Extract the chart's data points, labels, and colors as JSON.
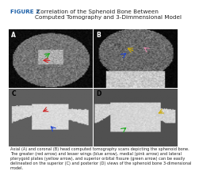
{
  "title_bold": "FIGURE 2",
  "title_normal": " Correlation of the Sphenoid Bone Between\nComputed Tomography and 3-Dimmensional Model",
  "caption": "Axial (A) and coronal (B) head computed tomography scans depicting the sphenoid bone.\nThe greater (red arrow) and lesser wings (blue arrow), medial (pink arrow) and lateral\npterygoid plates (yellow arrow), and superior orbital fissure (green arrow) can be easily\ndelineated on the superior (C) and posterior (D) views of the sphenoid bone 3-dimensional\nmodel.",
  "panel_labels": [
    "A",
    "B",
    "C",
    "D"
  ],
  "panel_label_color": "#ffffff",
  "panel_label_cd_color": "#000000",
  "background_color": "#ffffff",
  "title_color_bold": "#1a5fa8",
  "title_color_normal": "#222222",
  "caption_color": "#222222",
  "title_fontsize": 5.2,
  "caption_fontsize": 3.6,
  "panel_label_fontsize": 5.5,
  "ct_A_bg": "#111111",
  "ct_B_bg": "#111111",
  "ct_A_brain_color": "#888888",
  "ct_B_brain_color": "#aaaaaa",
  "model_C_bg": "#7a6a5a",
  "model_D_bg": "#6a5a4a",
  "model_bone_color": "#e8e0d0",
  "arrow_red": "#cc2222",
  "arrow_green": "#22aa22",
  "arrow_blue": "#2244cc",
  "arrow_yellow": "#ccaa00",
  "arrow_pink": "#dd88aa"
}
